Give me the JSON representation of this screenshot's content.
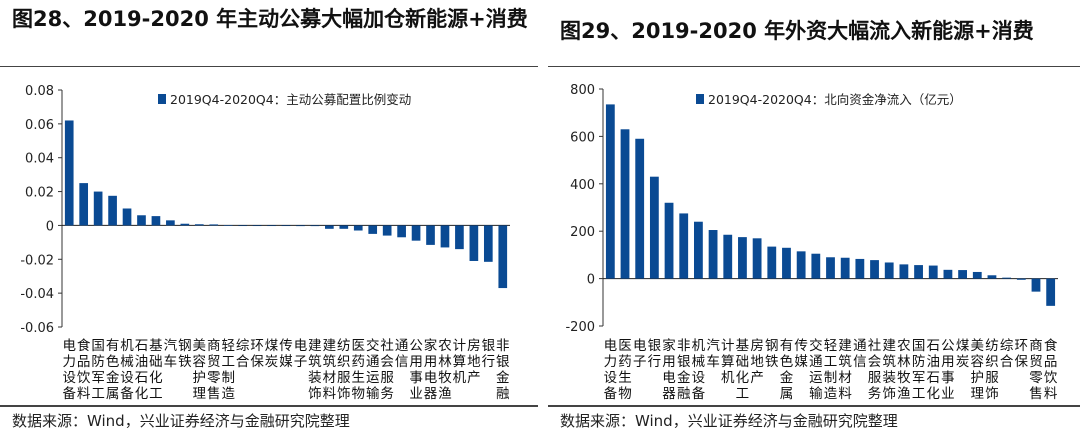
{
  "left": {
    "title": "图28、2019-2020 年主动公募大幅加仓新能源+消费",
    "source": "数据来源：Wind，兴业证券经济与金融研究院整理"
  },
  "right": {
    "title": "图29、2019-2020 年外资大幅流入新能源+消费",
    "source": "数据来源：Wind，兴业证券经济与金融研究院整理"
  },
  "chart_data": [
    {
      "type": "bar",
      "color": "#0a4a93",
      "legend_position": "top",
      "grid": false,
      "ylim": [
        -0.06,
        0.08
      ],
      "yticks": [
        "0.08",
        "0.06",
        "0.04",
        "0.02",
        "0",
        "-0.02",
        "-0.04",
        "-0.06"
      ],
      "ytick_values": [
        0.08,
        0.06,
        0.04,
        0.02,
        0,
        -0.02,
        -0.04,
        -0.06
      ],
      "categories": [
        "电力设备",
        "食品饮料",
        "国防军工",
        "有色金属",
        "机械设备",
        "石油石化",
        "基础化工",
        "汽车",
        "钢铁",
        "美容护理",
        "商贸零售",
        "轻工制造",
        "综合",
        "环保",
        "煤炭",
        "传媒",
        "电子",
        "建筑装饰",
        "建筑材料",
        "纺织服饰",
        "医药生物",
        "交通运输",
        "社会服务",
        "通信",
        "公用事业",
        "家用电器",
        "农林牧渔",
        "计算机",
        "房地产",
        "银行",
        "非银金融"
      ],
      "series": [
        {
          "name": "2019Q4-2020Q4：主动公募配置比例变动",
          "values": [
            0.062,
            0.025,
            0.02,
            0.0175,
            0.01,
            0.006,
            0.0055,
            0.003,
            0.001,
            0.0007,
            0.0006,
            0.0002,
            -0.0002,
            -0.0003,
            -0.0003,
            -0.0003,
            -0.0004,
            -0.0004,
            -0.002,
            -0.002,
            -0.003,
            -0.005,
            -0.006,
            -0.007,
            -0.009,
            -0.0115,
            -0.013,
            -0.014,
            -0.021,
            -0.0215,
            -0.037
          ]
        }
      ]
    },
    {
      "type": "bar",
      "color": "#0a4a93",
      "legend_position": "top",
      "grid": false,
      "ylim": [
        -200,
        800
      ],
      "yticks": [
        "800",
        "600",
        "400",
        "200",
        "0",
        "-200"
      ],
      "ytick_values": [
        800,
        600,
        400,
        200,
        0,
        -200
      ],
      "categories": [
        "电力设备",
        "医药生物",
        "电子",
        "银行",
        "家用电器",
        "非银金融",
        "机械设备",
        "汽车",
        "计算机",
        "基础化工",
        "房地产",
        "钢铁",
        "有色金属",
        "传媒",
        "交通运输",
        "轻工制造",
        "建筑材料",
        "通信",
        "社会服务",
        "建筑装饰",
        "农林牧渔",
        "国防军工",
        "石油石化",
        "公用事业",
        "煤炭",
        "美容护理",
        "纺织服饰",
        "综合",
        "环保",
        "商贸零售",
        "食品饮料"
      ],
      "series": [
        {
          "name": "2019Q4-2020Q4：北向资金净流入（亿元）",
          "values": [
            735,
            630,
            590,
            430,
            320,
            275,
            240,
            205,
            185,
            175,
            170,
            135,
            130,
            115,
            105,
            90,
            88,
            83,
            78,
            68,
            60,
            57,
            55,
            37,
            36,
            28,
            14,
            4,
            -5,
            -55,
            -115
          ]
        }
      ]
    }
  ]
}
